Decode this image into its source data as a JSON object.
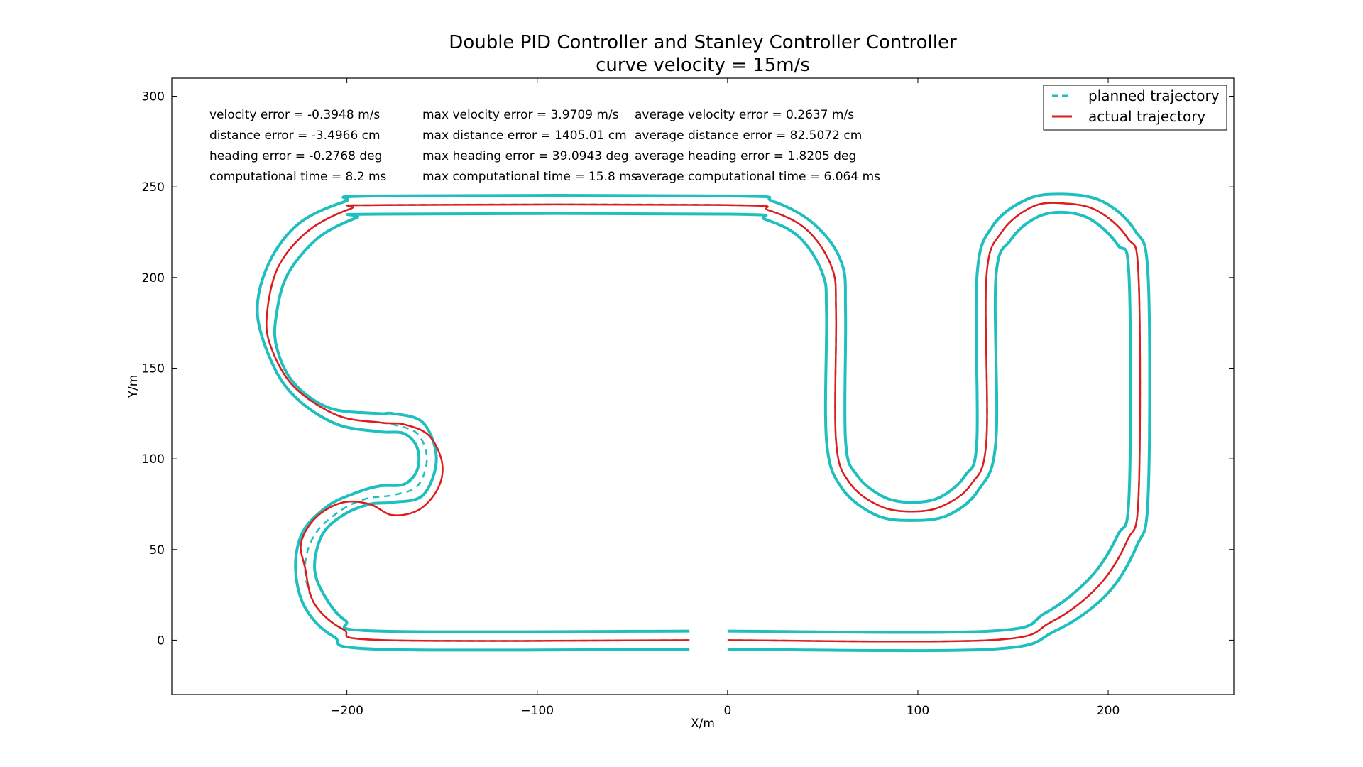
{
  "chart_data": {
    "type": "line",
    "title": "Double PID Controller and Stanley Controller Controller",
    "subtitle": "curve velocity = 15m/s",
    "xlabel": "X/m",
    "ylabel": "Y/m",
    "xlim": [
      -292,
      266
    ],
    "ylim": [
      -30,
      310
    ],
    "xticks": [
      -200,
      -100,
      0,
      100,
      200
    ],
    "yticks": [
      0,
      50,
      100,
      150,
      200,
      250,
      300
    ],
    "xtick_labels": [
      "−200",
      "−100",
      "0",
      "100",
      "200"
    ],
    "ytick_labels": [
      "0",
      "50",
      "100",
      "150",
      "200",
      "250",
      "300"
    ],
    "grid": false,
    "legend": {
      "placement": "top-right",
      "entries": [
        {
          "label": "planned trajectory",
          "style": "dashed",
          "color": "#1fbfbf"
        },
        {
          "label": "actual trajectory",
          "style": "solid",
          "color": "#e31a1c"
        }
      ]
    },
    "stats": {
      "current": [
        "velocity error = -0.3948 m/s",
        "distance error = -3.4966 cm",
        "heading error = -0.2768 deg",
        "computational time = 8.2 ms"
      ],
      "max": [
        "max velocity error = 3.9709 m/s",
        "max distance error = 1405.01 cm",
        "max heading error = 39.0943 deg",
        "max computational time = 15.8 ms"
      ],
      "average": [
        "average velocity error = 0.2637 m/s",
        "average distance error = 82.5072 cm",
        "average heading error = 1.8205 deg",
        "average computational time = 6.064 ms"
      ]
    },
    "colors": {
      "boundary": "#1fbfbf",
      "planned": "#1fbfbf",
      "actual": "#e31a1c"
    },
    "series": [
      {
        "name": "planned trajectory",
        "points": [
          [
            -20,
            0
          ],
          [
            -180,
            0
          ],
          [
            -202,
            6
          ],
          [
            -217,
            20
          ],
          [
            -222,
            40
          ],
          [
            -217,
            58
          ],
          [
            -204,
            71
          ],
          [
            -190,
            78
          ],
          [
            -176,
            80
          ],
          [
            -163,
            85
          ],
          [
            -158,
            100
          ],
          [
            -163,
            114
          ],
          [
            -176,
            119
          ],
          [
            -182,
            120
          ],
          [
            -205,
            124
          ],
          [
            -228,
            140
          ],
          [
            -240,
            162
          ],
          [
            -242,
            180
          ],
          [
            -236,
            206
          ],
          [
            -220,
            226
          ],
          [
            -198,
            238
          ],
          [
            -182,
            240
          ],
          [
            0,
            240
          ],
          [
            22,
            237
          ],
          [
            42,
            226
          ],
          [
            55,
            205
          ],
          [
            57,
            180
          ],
          [
            57,
            110
          ],
          [
            64,
            87
          ],
          [
            80,
            74
          ],
          [
            97,
            71
          ],
          [
            113,
            74
          ],
          [
            128,
            86
          ],
          [
            136,
            110
          ],
          [
            136,
            200
          ],
          [
            144,
            225
          ],
          [
            160,
            239
          ],
          [
            176,
            241
          ],
          [
            194,
            237
          ],
          [
            210,
            222
          ],
          [
            216,
            200
          ],
          [
            216,
            80
          ],
          [
            210,
            55
          ],
          [
            195,
            30
          ],
          [
            170,
            10
          ],
          [
            138,
            0
          ],
          [
            0,
            0
          ]
        ]
      },
      {
        "name": "actual trajectory",
        "points": [
          [
            -20,
            0
          ],
          [
            -180,
            0
          ],
          [
            -202,
            6
          ],
          [
            -217,
            20
          ],
          [
            -222,
            40
          ],
          [
            -224,
            54
          ],
          [
            -216,
            68
          ],
          [
            -202,
            76
          ],
          [
            -188,
            75
          ],
          [
            -176,
            69
          ],
          [
            -162,
            72
          ],
          [
            -152,
            84
          ],
          [
            -150,
            98
          ],
          [
            -157,
            113
          ],
          [
            -170,
            119
          ],
          [
            -182,
            120
          ],
          [
            -205,
            124
          ],
          [
            -228,
            140
          ],
          [
            -240,
            162
          ],
          [
            -242,
            180
          ],
          [
            -236,
            206
          ],
          [
            -220,
            226
          ],
          [
            -198,
            238
          ],
          [
            -182,
            240
          ],
          [
            0,
            240
          ],
          [
            22,
            237
          ],
          [
            42,
            226
          ],
          [
            55,
            205
          ],
          [
            57,
            180
          ],
          [
            57,
            110
          ],
          [
            64,
            87
          ],
          [
            80,
            74
          ],
          [
            97,
            71
          ],
          [
            113,
            74
          ],
          [
            128,
            86
          ],
          [
            136,
            110
          ],
          [
            136,
            200
          ],
          [
            144,
            225
          ],
          [
            160,
            239
          ],
          [
            176,
            241
          ],
          [
            194,
            237
          ],
          [
            210,
            222
          ],
          [
            216,
            200
          ],
          [
            216,
            80
          ],
          [
            210,
            55
          ],
          [
            195,
            30
          ],
          [
            170,
            10
          ],
          [
            138,
            0
          ],
          [
            0,
            0
          ]
        ]
      }
    ],
    "boundaries": [
      {
        "name": "outer boundary",
        "points": [
          [
            -20,
            -5
          ],
          [
            -183,
            -5
          ],
          [
            -207,
            2
          ],
          [
            -222,
            18
          ],
          [
            -227,
            40
          ],
          [
            -223,
            60
          ],
          [
            -210,
            74
          ],
          [
            -196,
            81
          ],
          [
            -183,
            85
          ],
          [
            -170,
            86
          ],
          [
            -163,
            94
          ],
          [
            -163,
            106
          ],
          [
            -170,
            114
          ],
          [
            -183,
            115
          ],
          [
            -205,
            119
          ],
          [
            -225,
            132
          ],
          [
            -238,
            150
          ],
          [
            -247,
            180
          ],
          [
            -241,
            208
          ],
          [
            -225,
            230
          ],
          [
            -201,
            242
          ],
          [
            -183,
            245
          ],
          [
            0,
            245
          ],
          [
            24,
            242
          ],
          [
            46,
            229
          ],
          [
            60,
            208
          ],
          [
            62,
            180
          ],
          [
            62,
            110
          ],
          [
            68,
            91
          ],
          [
            82,
            79
          ],
          [
            97,
            76
          ],
          [
            112,
            79
          ],
          [
            125,
            91
          ],
          [
            131,
            110
          ],
          [
            131,
            200
          ],
          [
            139,
            228
          ],
          [
            157,
            243
          ],
          [
            176,
            246
          ],
          [
            197,
            242
          ],
          [
            214,
            226
          ],
          [
            221,
            200
          ],
          [
            221,
            80
          ],
          [
            215,
            52
          ],
          [
            199,
            25
          ],
          [
            172,
            5
          ],
          [
            138,
            -5
          ],
          [
            0,
            -5
          ]
        ]
      },
      {
        "name": "inner boundary",
        "points": [
          [
            -20,
            5
          ],
          [
            -183,
            5
          ],
          [
            -201,
            11
          ],
          [
            -212,
            25
          ],
          [
            -217,
            40
          ],
          [
            -213,
            58
          ],
          [
            -202,
            69
          ],
          [
            -188,
            75
          ],
          [
            -176,
            76
          ],
          [
            -160,
            80
          ],
          [
            -153,
            100
          ],
          [
            -160,
            120
          ],
          [
            -176,
            125
          ],
          [
            -183,
            125
          ],
          [
            -209,
            128
          ],
          [
            -228,
            142
          ],
          [
            -237,
            162
          ],
          [
            -237,
            180
          ],
          [
            -231,
            202
          ],
          [
            -215,
            222
          ],
          [
            -195,
            233
          ],
          [
            -183,
            235
          ],
          [
            0,
            235
          ],
          [
            20,
            232
          ],
          [
            38,
            222
          ],
          [
            50,
            202
          ],
          [
            52,
            180
          ],
          [
            52,
            110
          ],
          [
            60,
            84
          ],
          [
            78,
            69
          ],
          [
            97,
            66
          ],
          [
            116,
            69
          ],
          [
            132,
            83
          ],
          [
            141,
            110
          ],
          [
            141,
            200
          ],
          [
            149,
            221
          ],
          [
            162,
            233
          ],
          [
            176,
            236
          ],
          [
            191,
            232
          ],
          [
            205,
            218
          ],
          [
            211,
            200
          ],
          [
            211,
            80
          ],
          [
            205,
            58
          ],
          [
            191,
            35
          ],
          [
            167,
            15
          ],
          [
            138,
            5
          ],
          [
            0,
            5
          ]
        ]
      }
    ]
  }
}
